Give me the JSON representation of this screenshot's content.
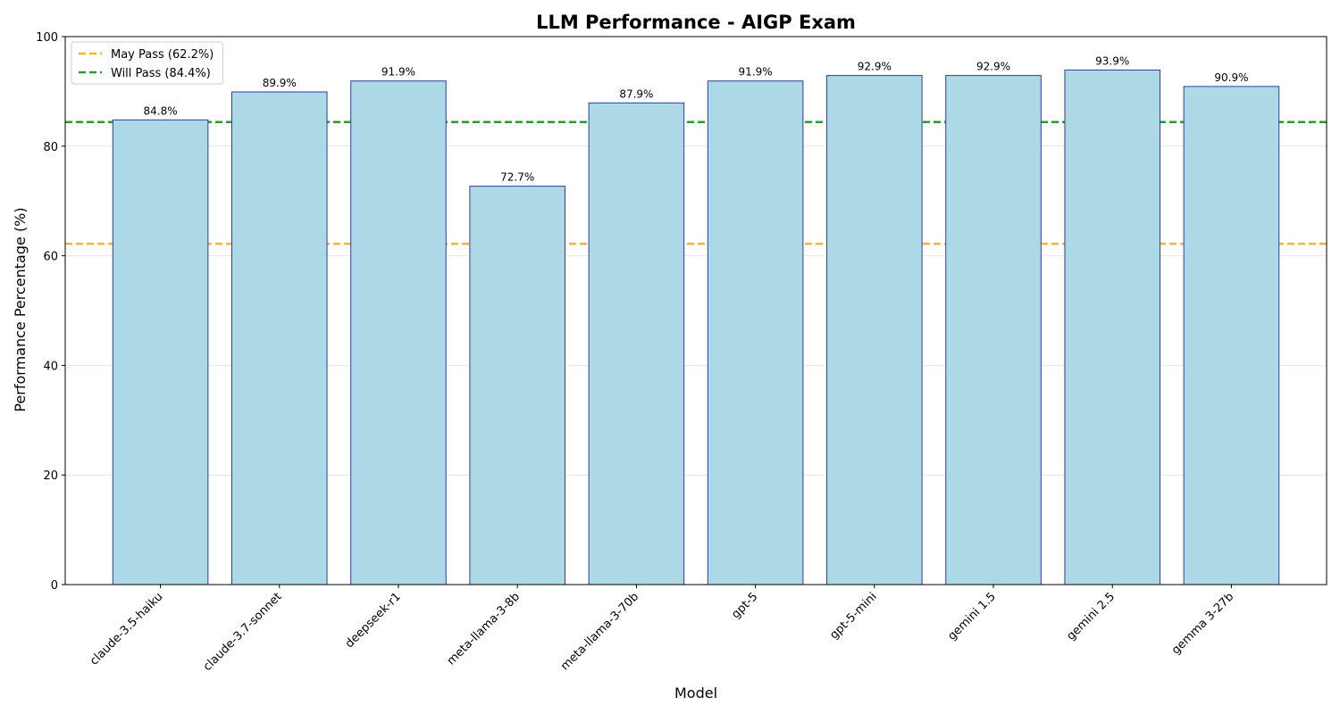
{
  "chart_data": {
    "type": "bar",
    "title": "LLM Performance - AIGP Exam",
    "xlabel": "Model",
    "ylabel": "Performance Percentage (%)",
    "ylim": [
      0,
      100
    ],
    "yticks": [
      0,
      20,
      40,
      60,
      80,
      100
    ],
    "grid": "horizontal",
    "categories": [
      "claude-3.5-haiku",
      "claude-3.7-sonnet",
      "deepseek-r1",
      "meta-llama-3-8b",
      "meta-llama-3-70b",
      "gpt-5",
      "gpt-5-mini",
      "gemini 1.5",
      "gemini 2.5",
      "gemma 3-27b"
    ],
    "values": [
      84.8,
      89.9,
      91.9,
      72.7,
      87.9,
      91.9,
      92.9,
      92.9,
      93.9,
      90.9
    ],
    "value_labels": [
      "84.8%",
      "89.9%",
      "91.9%",
      "72.7%",
      "87.9%",
      "91.9%",
      "92.9%",
      "92.9%",
      "93.9%",
      "90.9%"
    ],
    "bar_color": "#add8e6",
    "bar_edge_color": "#2e3d9c",
    "reference_lines": [
      {
        "label": "May Pass (62.2%)",
        "value": 62.2,
        "color": "#ffb02e",
        "style": "dashed"
      },
      {
        "label": "Will Pass (84.4%)",
        "value": 84.4,
        "color": "#2a9a2a",
        "style": "dashed"
      }
    ],
    "legend_position": "top-left"
  }
}
